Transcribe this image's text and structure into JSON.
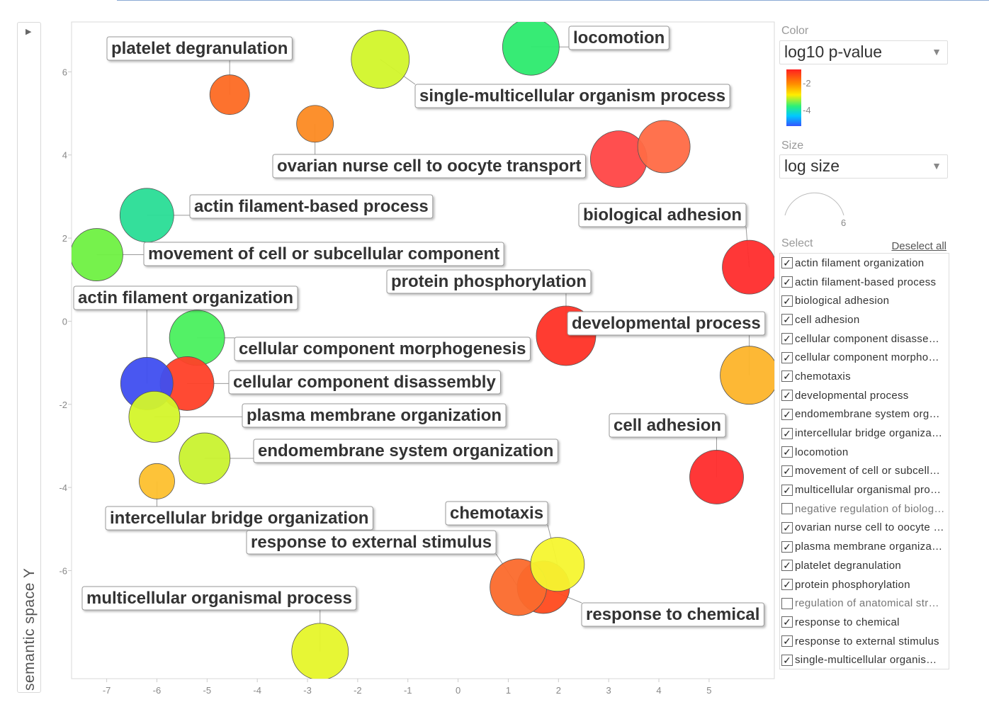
{
  "chart_data": {
    "type": "scatter",
    "ylabel": "semantic space Y",
    "xlabel": "",
    "xlim": [
      -7.7,
      6.3
    ],
    "ylim": [
      -8.6,
      7.2
    ],
    "x_ticks": [
      -7,
      -6,
      -5,
      -4,
      -3,
      -2,
      -1,
      0,
      1,
      2,
      3,
      4,
      5
    ],
    "y_ticks": [
      6,
      4,
      2,
      0,
      -2,
      -4,
      -6
    ],
    "grid": false,
    "bubbles": [
      {
        "term": "locomotion",
        "x": 1.45,
        "y": 6.6,
        "color": "#2cea6e"
      },
      {
        "term": "platelet degranulation",
        "x": -4.55,
        "y": 5.45,
        "color": "#fd6a23"
      },
      {
        "term": "single-multicellular organism process",
        "x": -1.55,
        "y": 6.3,
        "color": "#d2f52a"
      },
      {
        "term": "ovarian nurse cell to oocyte transport",
        "x": -2.85,
        "y": 4.75,
        "color": "#fc8a22"
      },
      {
        "term": "regulation of anatomical structure",
        "x": 3.2,
        "y": 3.9,
        "color": "#ff4646"
      },
      {
        "term": "negative regulation of biological process",
        "x": 4.1,
        "y": 4.2,
        "color": "#ff6a45"
      },
      {
        "term": "actin filament-based process",
        "x": -6.2,
        "y": 2.55,
        "color": "#29dd96"
      },
      {
        "term": "movement of cell or subcellular component",
        "x": -7.2,
        "y": 1.6,
        "color": "#6ff142"
      },
      {
        "term": "biological adhesion",
        "x": 5.8,
        "y": 1.3,
        "color": "#ff2c2c"
      },
      {
        "term": "protein phosphorylation",
        "x": 2.15,
        "y": -0.35,
        "color": "#ff3226"
      },
      {
        "term": "developmental process",
        "x": 5.8,
        "y": -1.3,
        "color": "#fdb42a"
      },
      {
        "term": "cellular component morphogenesis",
        "x": -5.2,
        "y": -0.4,
        "color": "#4af05e"
      },
      {
        "term": "cellular component disassembly",
        "x": -5.4,
        "y": -1.5,
        "color": "#ff4028"
      },
      {
        "term": "actin filament organization",
        "x": -6.2,
        "y": -1.5,
        "color": "#3f4ef0"
      },
      {
        "term": "plasma membrane organization",
        "x": -6.05,
        "y": -2.3,
        "color": "#d4f52a"
      },
      {
        "term": "endomembrane system organization",
        "x": -5.05,
        "y": -3.3,
        "color": "#c9f22f"
      },
      {
        "term": "intercellular bridge organization",
        "x": -6.0,
        "y": -3.85,
        "color": "#fdc02e"
      },
      {
        "term": "cell adhesion",
        "x": 5.15,
        "y": -3.75,
        "color": "#ff2c2c"
      },
      {
        "term": "response to chemical",
        "x": 1.7,
        "y": -6.4,
        "color": "#ff4a1e"
      },
      {
        "term": "response to external stimulus",
        "x": 1.2,
        "y": -6.4,
        "color": "#fb6a2c"
      },
      {
        "term": "chemotaxis",
        "x": 1.98,
        "y": -5.85,
        "color": "#f6f52f"
      },
      {
        "term": "multicellular organismal process",
        "x": -2.75,
        "y": -7.95,
        "color": "#e6f52a"
      }
    ],
    "labels": [
      {
        "text": "locomotion",
        "term": "locomotion"
      },
      {
        "text": "platelet degranulation",
        "term": "platelet degranulation"
      },
      {
        "text": "single-multicellular organism process",
        "term": "single-multicellular organism process"
      },
      {
        "text": "ovarian nurse cell to oocyte transport",
        "term": "ovarian nurse cell to oocyte transport"
      },
      {
        "text": "actin filament-based process",
        "term": "actin filament-based process"
      },
      {
        "text": "biological adhesion",
        "term": "biological adhesion"
      },
      {
        "text": "movement of cell or subcellular component",
        "term": "movement of cell or subcellular component"
      },
      {
        "text": "protein phosphorylation",
        "term": "protein phosphorylation"
      },
      {
        "text": "actin filament organization",
        "term": "actin filament organization"
      },
      {
        "text": "developmental process",
        "term": "developmental process"
      },
      {
        "text": "cellular component morphogenesis",
        "term": "cellular component morphogenesis"
      },
      {
        "text": "cellular component disassembly",
        "term": "cellular component disassembly"
      },
      {
        "text": "plasma membrane organization",
        "term": "plasma membrane organization"
      },
      {
        "text": "cell adhesion",
        "term": "cell adhesion"
      },
      {
        "text": "endomembrane system organization",
        "term": "endomembrane system organization"
      },
      {
        "text": "chemotaxis",
        "term": "chemotaxis"
      },
      {
        "text": "intercellular bridge organization",
        "term": "intercellular bridge organization"
      },
      {
        "text": "response to external stimulus",
        "term": "response to external stimulus"
      },
      {
        "text": "multicellular organismal process",
        "term": "multicellular organismal process"
      },
      {
        "text": "response to chemical",
        "term": "response to chemical"
      }
    ]
  },
  "panel": {
    "color_title": "Color",
    "color_value": "log10 p-value",
    "color_ticks": [
      "-2",
      "-4"
    ],
    "size_title": "Size",
    "size_value": "log size",
    "size_legend_value": "6",
    "select_title": "Select",
    "deselect_all": "Deselect all",
    "items": [
      {
        "label": "actin filament organization",
        "checked": true
      },
      {
        "label": "actin filament-based process",
        "checked": true
      },
      {
        "label": "biological adhesion",
        "checked": true
      },
      {
        "label": "cell adhesion",
        "checked": true
      },
      {
        "label": "cellular component disassembly",
        "checked": true
      },
      {
        "label": "cellular component morphogenesis",
        "checked": true
      },
      {
        "label": "chemotaxis",
        "checked": true
      },
      {
        "label": "developmental process",
        "checked": true
      },
      {
        "label": "endomembrane system organization",
        "checked": true
      },
      {
        "label": "intercellular bridge organization",
        "checked": true
      },
      {
        "label": "locomotion",
        "checked": true
      },
      {
        "label": "movement of cell or subcellular component",
        "checked": true
      },
      {
        "label": "multicellular organismal process",
        "checked": true
      },
      {
        "label": "negative regulation of biological process",
        "checked": false
      },
      {
        "label": "ovarian nurse cell to oocyte transport",
        "checked": true
      },
      {
        "label": "plasma membrane organization",
        "checked": true
      },
      {
        "label": "platelet degranulation",
        "checked": true
      },
      {
        "label": "protein phosphorylation",
        "checked": true
      },
      {
        "label": "regulation of anatomical structure",
        "checked": false
      },
      {
        "label": "response to chemical",
        "checked": true
      },
      {
        "label": "response to external stimulus",
        "checked": true
      },
      {
        "label": "single-multicellular organism process",
        "checked": true
      }
    ]
  }
}
